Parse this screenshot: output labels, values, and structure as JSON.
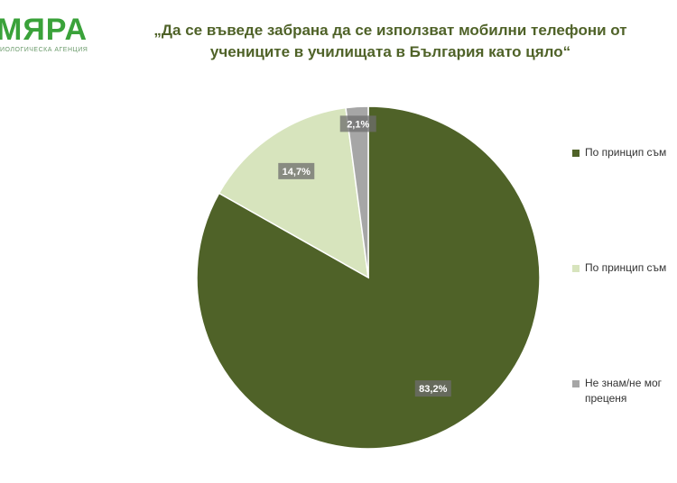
{
  "logo": {
    "name": "МЯРА",
    "tagline": "ИОЛОГИЧЕСКА АГЕНЦИЯ"
  },
  "chart_data": {
    "type": "pie",
    "title": "„Да се въведе забрана да се използват мобилни телефони от учениците в училищата в България като цяло“",
    "categories": [
      "По принцип съм",
      "По принцип съм",
      "Не знам/не мог преценя"
    ],
    "values": [
      83.2,
      14.7,
      2.1
    ],
    "value_labels": [
      "83,2%",
      "14,7%",
      "2,1%"
    ],
    "colors": [
      "#4f6228",
      "#d7e4bd",
      "#a6a6a6"
    ],
    "legend": "right"
  }
}
